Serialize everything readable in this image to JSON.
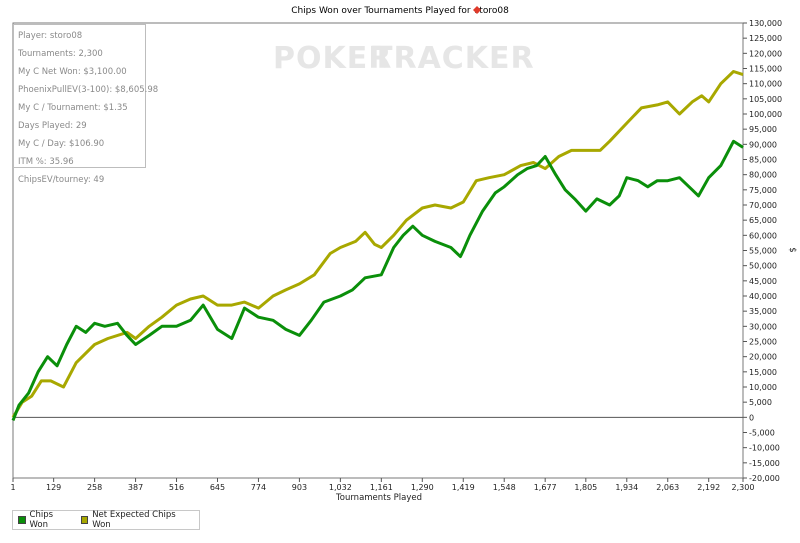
{
  "stats": [
    "Player: storo08",
    "Tournaments: 2,300",
    "My C Net Won: $3,100.00",
    "PhoenixPullEV(3-100): $8,605.98",
    "My C / Tournament: $1.35",
    "Days Played: 29",
    "My C / Day: $106.90",
    "ITM %: 35.96",
    "ChipsEV/tourney: 49"
  ],
  "watermark": {
    "left": "POKER",
    "right": "TRACKER"
  },
  "chart_data": {
    "type": "line",
    "title_prefix": "Chips Won over Tournaments Played for",
    "title_player": "storo08",
    "xlabel": "Tournaments Played",
    "ylabel": "$",
    "xlim": [
      1,
      2300
    ],
    "ylim": [
      -20000,
      130000
    ],
    "x_ticks": [
      1,
      129,
      258,
      387,
      516,
      645,
      774,
      903,
      1032,
      1161,
      1290,
      1419,
      1548,
      1677,
      1805,
      1934,
      2063,
      2192,
      2300
    ],
    "x_tick_labels": [
      "1",
      "129",
      "258",
      "387",
      "516",
      "645",
      "774",
      "903",
      "1,032",
      "1,161",
      "1,290",
      "1,419",
      "1,548",
      "1,677",
      "1,805",
      "1,934",
      "2,063",
      "2,192",
      "2,300"
    ],
    "y_ticks": [
      -20000,
      -15000,
      -10000,
      -5000,
      0,
      5000,
      10000,
      15000,
      20000,
      25000,
      30000,
      35000,
      40000,
      45000,
      50000,
      55000,
      60000,
      65000,
      70000,
      75000,
      80000,
      85000,
      90000,
      95000,
      100000,
      105000,
      110000,
      115000,
      120000,
      125000,
      130000
    ],
    "y_tick_labels": [
      "-20,000",
      "-15,000",
      "-10,000",
      "-5,000",
      "0",
      "5,000",
      "10,000",
      "15,000",
      "20,000",
      "25,000",
      "30,000",
      "35,000",
      "40,000",
      "45,000",
      "50,000",
      "55,000",
      "60,000",
      "65,000",
      "70,000",
      "75,000",
      "80,000",
      "85,000",
      "90,000",
      "95,000",
      "100,000",
      "105,000",
      "110,000",
      "115,000",
      "120,000",
      "125,000",
      "130,000"
    ],
    "grid": false,
    "legend_position": "bottom-left",
    "series": [
      {
        "name": "Net Expected Chips Won",
        "color": "#a8a800",
        "points": [
          [
            1,
            0
          ],
          [
            30,
            5000
          ],
          [
            60,
            7000
          ],
          [
            90,
            12000
          ],
          [
            120,
            12000
          ],
          [
            160,
            10000
          ],
          [
            200,
            18000
          ],
          [
            258,
            24000
          ],
          [
            300,
            26000
          ],
          [
            360,
            28000
          ],
          [
            387,
            26000
          ],
          [
            430,
            30000
          ],
          [
            470,
            33000
          ],
          [
            516,
            37000
          ],
          [
            560,
            39000
          ],
          [
            600,
            40000
          ],
          [
            645,
            37000
          ],
          [
            690,
            37000
          ],
          [
            730,
            38000
          ],
          [
            774,
            36000
          ],
          [
            820,
            40000
          ],
          [
            860,
            42000
          ],
          [
            903,
            44000
          ],
          [
            950,
            47000
          ],
          [
            1000,
            54000
          ],
          [
            1032,
            56000
          ],
          [
            1080,
            58000
          ],
          [
            1110,
            61000
          ],
          [
            1140,
            57000
          ],
          [
            1161,
            56000
          ],
          [
            1200,
            60000
          ],
          [
            1240,
            65000
          ],
          [
            1290,
            69000
          ],
          [
            1330,
            70000
          ],
          [
            1380,
            69000
          ],
          [
            1419,
            71000
          ],
          [
            1460,
            78000
          ],
          [
            1500,
            79000
          ],
          [
            1548,
            80000
          ],
          [
            1600,
            83000
          ],
          [
            1640,
            84000
          ],
          [
            1677,
            82000
          ],
          [
            1720,
            86000
          ],
          [
            1760,
            88000
          ],
          [
            1805,
            88000
          ],
          [
            1850,
            88000
          ],
          [
            1880,
            91000
          ],
          [
            1934,
            97000
          ],
          [
            1980,
            102000
          ],
          [
            2030,
            103000
          ],
          [
            2063,
            104000
          ],
          [
            2100,
            100000
          ],
          [
            2140,
            104000
          ],
          [
            2170,
            106000
          ],
          [
            2192,
            104000
          ],
          [
            2230,
            110000
          ],
          [
            2270,
            114000
          ],
          [
            2300,
            113000
          ]
        ]
      },
      {
        "name": "Chips Won",
        "color": "#0a8f0a",
        "points": [
          [
            1,
            -1000
          ],
          [
            20,
            4000
          ],
          [
            50,
            8000
          ],
          [
            80,
            15000
          ],
          [
            110,
            20000
          ],
          [
            140,
            17000
          ],
          [
            170,
            24000
          ],
          [
            200,
            30000
          ],
          [
            230,
            28000
          ],
          [
            258,
            31000
          ],
          [
            290,
            30000
          ],
          [
            330,
            31000
          ],
          [
            360,
            27000
          ],
          [
            387,
            24000
          ],
          [
            430,
            27000
          ],
          [
            470,
            30000
          ],
          [
            516,
            30000
          ],
          [
            560,
            32000
          ],
          [
            600,
            37000
          ],
          [
            645,
            29000
          ],
          [
            690,
            26000
          ],
          [
            730,
            36000
          ],
          [
            774,
            33000
          ],
          [
            820,
            32000
          ],
          [
            860,
            29000
          ],
          [
            903,
            27000
          ],
          [
            940,
            32000
          ],
          [
            980,
            38000
          ],
          [
            1032,
            40000
          ],
          [
            1070,
            42000
          ],
          [
            1110,
            46000
          ],
          [
            1161,
            47000
          ],
          [
            1200,
            56000
          ],
          [
            1230,
            60000
          ],
          [
            1260,
            63000
          ],
          [
            1290,
            60000
          ],
          [
            1330,
            58000
          ],
          [
            1380,
            56000
          ],
          [
            1410,
            53000
          ],
          [
            1419,
            55000
          ],
          [
            1440,
            60000
          ],
          [
            1480,
            68000
          ],
          [
            1520,
            74000
          ],
          [
            1548,
            76000
          ],
          [
            1590,
            80000
          ],
          [
            1620,
            82000
          ],
          [
            1650,
            83000
          ],
          [
            1677,
            86000
          ],
          [
            1710,
            80000
          ],
          [
            1740,
            75000
          ],
          [
            1770,
            72000
          ],
          [
            1805,
            68000
          ],
          [
            1840,
            72000
          ],
          [
            1880,
            70000
          ],
          [
            1910,
            73000
          ],
          [
            1934,
            79000
          ],
          [
            1970,
            78000
          ],
          [
            2000,
            76000
          ],
          [
            2030,
            78000
          ],
          [
            2063,
            78000
          ],
          [
            2100,
            79000
          ],
          [
            2140,
            75000
          ],
          [
            2160,
            73000
          ],
          [
            2192,
            79000
          ],
          [
            2230,
            83000
          ],
          [
            2270,
            91000
          ],
          [
            2300,
            89000
          ]
        ]
      }
    ]
  }
}
